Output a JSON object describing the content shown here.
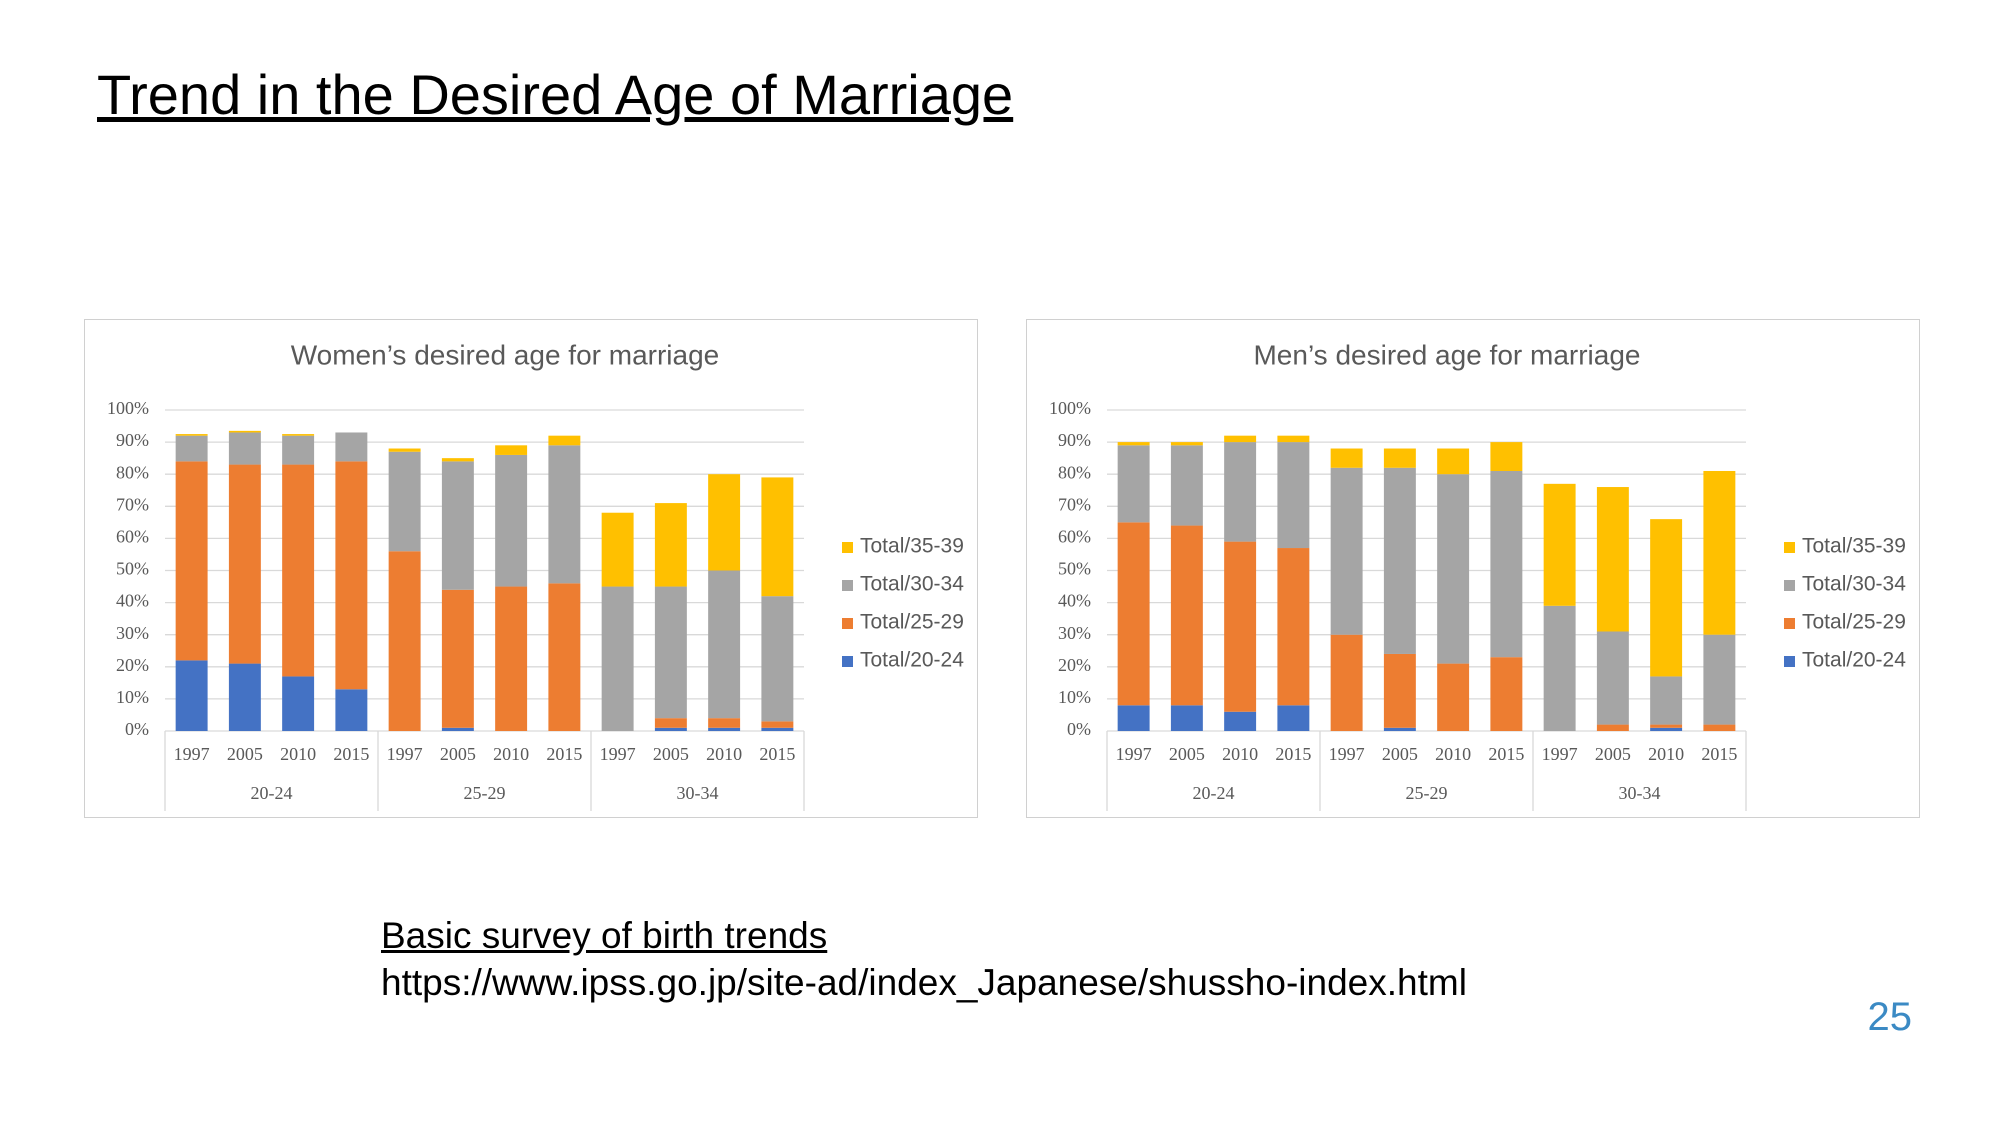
{
  "title": "Trend in the Desired Age of Marriage",
  "source": {
    "title": "Basic survey of birth trends",
    "url": "https://www.ipss.go.jp/site-ad/index_Japanese/shussho-index.html"
  },
  "page_number": "25",
  "chart_data": [
    {
      "type": "stacked_bar",
      "title": "Women’s desired age for marriage",
      "categories": [
        "1997",
        "2005",
        "2010",
        "2015",
        "1997",
        "2005",
        "2010",
        "2015",
        "1997",
        "2005",
        "2010",
        "2015"
      ],
      "groups": [
        "20-24",
        "25-29",
        "30-34"
      ],
      "series": [
        {
          "name": "Total/20-24",
          "color": "#4472c4",
          "values": [
            22,
            21,
            17,
            13,
            0,
            1,
            0,
            0,
            0,
            1,
            1,
            1
          ]
        },
        {
          "name": "Total/25-29",
          "color": "#ed7d31",
          "values": [
            62,
            62,
            66,
            71,
            56,
            43,
            45,
            46,
            0,
            3,
            3,
            2
          ]
        },
        {
          "name": "Total/30-34",
          "color": "#a5a5a5",
          "values": [
            8,
            10,
            9,
            9,
            31,
            40,
            41,
            43,
            45,
            41,
            46,
            39
          ]
        },
        {
          "name": "Total/35-39",
          "color": "#ffc000",
          "values": [
            0.5,
            0.5,
            0.5,
            0,
            1,
            1,
            3,
            3,
            23,
            26,
            30,
            37
          ]
        }
      ],
      "ylim": [
        0,
        100
      ],
      "yticks": [
        {
          "value": 0,
          "label": "0%"
        },
        {
          "value": 10,
          "label": "10%"
        },
        {
          "value": 20,
          "label": "20%"
        },
        {
          "value": 30,
          "label": "30%"
        },
        {
          "value": 40,
          "label": "40%"
        },
        {
          "value": 50,
          "label": "50%"
        },
        {
          "value": 60,
          "label": "60%"
        },
        {
          "value": 70,
          "label": "70%"
        },
        {
          "value": 80,
          "label": "80%"
        },
        {
          "value": 90,
          "label": "90%"
        },
        {
          "value": 100,
          "label": "100%"
        }
      ],
      "grid": true,
      "legend": "right"
    },
    {
      "type": "stacked_bar",
      "title": "Men’s desired age for marriage",
      "categories": [
        "1997",
        "2005",
        "2010",
        "2015",
        "1997",
        "2005",
        "2010",
        "2015",
        "1997",
        "2005",
        "2010",
        "2015"
      ],
      "groups": [
        "20-24",
        "25-29",
        "30-34"
      ],
      "series": [
        {
          "name": "Total/20-24",
          "color": "#4472c4",
          "values": [
            8,
            8,
            6,
            8,
            0,
            1,
            0,
            0,
            0,
            0,
            1,
            0
          ]
        },
        {
          "name": "Total/25-29",
          "color": "#ed7d31",
          "values": [
            57,
            56,
            53,
            49,
            30,
            23,
            21,
            23,
            0,
            2,
            1,
            2
          ]
        },
        {
          "name": "Total/30-34",
          "color": "#a5a5a5",
          "values": [
            24,
            25,
            31,
            33,
            52,
            58,
            59,
            58,
            39,
            29,
            15,
            28
          ]
        },
        {
          "name": "Total/35-39",
          "color": "#ffc000",
          "values": [
            1,
            1,
            2,
            2,
            6,
            6,
            8,
            9,
            38,
            45,
            49,
            51
          ]
        }
      ],
      "ylim": [
        0,
        100
      ],
      "yticks": [
        {
          "value": 0,
          "label": "0%"
        },
        {
          "value": 10,
          "label": "10%"
        },
        {
          "value": 20,
          "label": "20%"
        },
        {
          "value": 30,
          "label": "30%"
        },
        {
          "value": 40,
          "label": "40%"
        },
        {
          "value": 50,
          "label": "50%"
        },
        {
          "value": 60,
          "label": "60%"
        },
        {
          "value": 70,
          "label": "70%"
        },
        {
          "value": 80,
          "label": "80%"
        },
        {
          "value": 90,
          "label": "90%"
        },
        {
          "value": 100,
          "label": "100%"
        }
      ],
      "grid": true,
      "legend": "right"
    }
  ]
}
